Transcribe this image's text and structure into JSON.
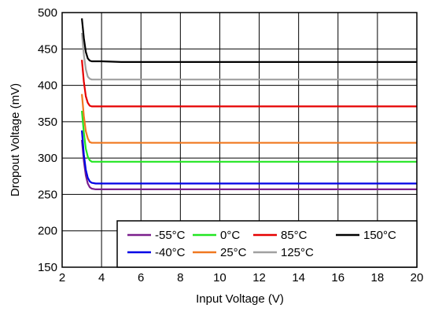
{
  "chart_data": {
    "type": "line",
    "xlabel": "Input Voltage (V)",
    "ylabel": "Dropout Voltage (mV)",
    "xlim": [
      2,
      20
    ],
    "ylim": [
      150,
      500
    ],
    "xticks": [
      2,
      4,
      6,
      8,
      10,
      12,
      14,
      16,
      18,
      20
    ],
    "yticks": [
      150,
      200,
      250,
      300,
      350,
      400,
      450,
      500
    ],
    "grid": true,
    "legend_position": "bottom-right",
    "series": [
      {
        "name": "-55°C",
        "color": "#7b1f8c",
        "x": [
          3.0,
          3.1,
          3.2,
          3.3,
          3.4,
          3.5,
          3.7,
          4.0,
          5.0,
          10.0,
          15.0,
          20.0
        ],
        "y": [
          325,
          296,
          276,
          265,
          260,
          258,
          257,
          257,
          257,
          257,
          257,
          257
        ]
      },
      {
        "name": "-40°C",
        "color": "#0000e6",
        "x": [
          3.0,
          3.1,
          3.2,
          3.3,
          3.4,
          3.5,
          3.7,
          4.0,
          5.0,
          10.0,
          15.0,
          20.0
        ],
        "y": [
          338,
          305,
          284,
          273,
          268,
          266,
          265,
          265,
          265,
          265,
          265,
          265
        ]
      },
      {
        "name": "0°C",
        "color": "#22e622",
        "x": [
          3.0,
          3.1,
          3.2,
          3.3,
          3.4,
          3.5,
          3.7,
          4.0,
          5.0,
          10.0,
          15.0,
          20.0
        ],
        "y": [
          365,
          335,
          313,
          302,
          297,
          295,
          295,
          295,
          295,
          295,
          295,
          295
        ]
      },
      {
        "name": "25°C",
        "color": "#f07820",
        "x": [
          3.0,
          3.1,
          3.2,
          3.3,
          3.4,
          3.5,
          3.7,
          4.0,
          5.0,
          10.0,
          15.0,
          20.0
        ],
        "y": [
          388,
          358,
          337,
          327,
          322,
          321,
          321,
          321,
          321,
          321,
          321,
          321
        ]
      },
      {
        "name": "85°C",
        "color": "#e60000",
        "x": [
          3.0,
          3.1,
          3.2,
          3.3,
          3.4,
          3.5,
          3.7,
          4.0,
          5.0,
          10.0,
          15.0,
          20.0
        ],
        "y": [
          435,
          405,
          385,
          376,
          372,
          371,
          371,
          371,
          371,
          371,
          371,
          371
        ]
      },
      {
        "name": "125°C",
        "color": "#a0a0a0",
        "x": [
          3.0,
          3.1,
          3.2,
          3.3,
          3.4,
          3.5,
          3.7,
          4.0,
          5.0,
          10.0,
          15.0,
          20.0
        ],
        "y": [
          472,
          442,
          422,
          412,
          409,
          408,
          408,
          408,
          408,
          408,
          408,
          408
        ]
      },
      {
        "name": "150°C",
        "color": "#000000",
        "x": [
          3.0,
          3.1,
          3.2,
          3.3,
          3.4,
          3.5,
          3.7,
          4.0,
          5.0,
          10.0,
          15.0,
          20.0
        ],
        "y": [
          492,
          465,
          446,
          437,
          434,
          433,
          433,
          433,
          432,
          432,
          432,
          432
        ]
      }
    ],
    "legend_rows": [
      [
        "-55°C",
        "0°C",
        "85°C",
        "150°C"
      ],
      [
        "-40°C",
        "25°C",
        "125°C"
      ]
    ]
  }
}
